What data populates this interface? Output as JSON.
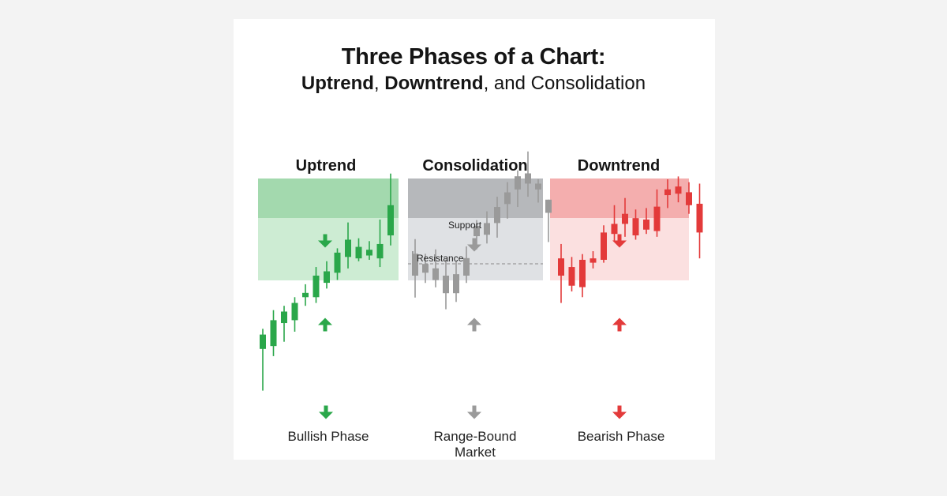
{
  "title": "Three Phases of a Chart:",
  "subtitle": {
    "part1": "Uptrend",
    "sep1": ", ",
    "part2": "Downtrend",
    "rest": ", and Consolidation"
  },
  "colors": {
    "up": "#2aa74a",
    "up_zone": "#cdecd3",
    "up_band": "#a3d9ae",
    "flat": "#9a9a9a",
    "flat_zone": "#dfe1e4",
    "flat_band": "#b6b8bb",
    "down": "#e33a3a",
    "down_zone": "#fbe0e0",
    "down_band": "#f4aeae"
  },
  "icons": {
    "zone_arrow_top": "arrow-down-icon",
    "zone_arrow_bottom": "arrow-up-icon",
    "caption_arrow": "arrow-down-icon"
  },
  "chart_data": [
    {
      "type": "candlestick",
      "title": "Uptrend",
      "caption": "Bullish Phase",
      "color_key": "up",
      "annotations": [],
      "candles": [
        {
          "o": 10,
          "h": 24,
          "l": -19,
          "c": 20
        },
        {
          "o": 12,
          "h": 37,
          "l": 5,
          "c": 30
        },
        {
          "o": 28,
          "h": 40,
          "l": 15,
          "c": 36
        },
        {
          "o": 30,
          "h": 46,
          "l": 22,
          "c": 42
        },
        {
          "o": 46,
          "h": 55,
          "l": 40,
          "c": 49
        },
        {
          "o": 46,
          "h": 67,
          "l": 42,
          "c": 61
        },
        {
          "o": 56,
          "h": 71,
          "l": 52,
          "c": 64
        },
        {
          "o": 63,
          "h": 80,
          "l": 58,
          "c": 77
        },
        {
          "o": 74,
          "h": 98,
          "l": 66,
          "c": 86
        },
        {
          "o": 73,
          "h": 87,
          "l": 71,
          "c": 81
        },
        {
          "o": 75,
          "h": 85,
          "l": 72,
          "c": 79
        },
        {
          "o": 73,
          "h": 100,
          "l": 67,
          "c": 83
        },
        {
          "o": 89,
          "h": 132,
          "l": 82,
          "c": 110
        }
      ]
    },
    {
      "type": "candlestick",
      "title": "Consolidation",
      "caption": "Range-Bound Market",
      "color_key": "flat",
      "annotations": [
        {
          "name": "support",
          "label": "Support"
        },
        {
          "name": "resistance",
          "label": "Resistance"
        }
      ],
      "candles": [
        {
          "o": 60,
          "h": 85,
          "l": 45,
          "c": 75
        },
        {
          "o": 68,
          "h": 75,
          "l": 55,
          "c": 62
        },
        {
          "o": 65,
          "h": 78,
          "l": 52,
          "c": 57
        },
        {
          "o": 60,
          "h": 71,
          "l": 37,
          "c": 48
        },
        {
          "o": 61,
          "h": 70,
          "l": 42,
          "c": 48
        },
        {
          "o": 60,
          "h": 80,
          "l": 55,
          "c": 72
        },
        {
          "o": 87,
          "h": 98,
          "l": 78,
          "c": 94
        },
        {
          "o": 88,
          "h": 104,
          "l": 82,
          "c": 96
        },
        {
          "o": 96,
          "h": 114,
          "l": 86,
          "c": 107
        },
        {
          "o": 109,
          "h": 124,
          "l": 99,
          "c": 117
        },
        {
          "o": 119,
          "h": 132,
          "l": 107,
          "c": 128
        },
        {
          "o": 123,
          "h": 145,
          "l": 114,
          "c": 130
        },
        {
          "o": 119,
          "h": 126,
          "l": 110,
          "c": 123
        },
        {
          "o": 103,
          "h": 112,
          "l": 83,
          "c": 112
        }
      ]
    },
    {
      "type": "candlestick",
      "title": "Downtrend",
      "caption": "Bearish Phase",
      "color_key": "down",
      "annotations": [],
      "candles": [
        {
          "o": 61,
          "h": 83,
          "l": 42,
          "c": 73
        },
        {
          "o": 54,
          "h": 74,
          "l": 50,
          "c": 67
        },
        {
          "o": 53,
          "h": 76,
          "l": 46,
          "c": 72
        },
        {
          "o": 70,
          "h": 78,
          "l": 66,
          "c": 73
        },
        {
          "o": 72,
          "h": 96,
          "l": 70,
          "c": 91
        },
        {
          "o": 90,
          "h": 110,
          "l": 85,
          "c": 97
        },
        {
          "o": 97,
          "h": 115,
          "l": 88,
          "c": 104
        },
        {
          "o": 89,
          "h": 107,
          "l": 86,
          "c": 101
        },
        {
          "o": 93,
          "h": 108,
          "l": 90,
          "c": 100
        },
        {
          "o": 92,
          "h": 121,
          "l": 88,
          "c": 109
        },
        {
          "o": 117,
          "h": 128,
          "l": 108,
          "c": 121
        },
        {
          "o": 118,
          "h": 130,
          "l": 112,
          "c": 123
        },
        {
          "o": 110,
          "h": 126,
          "l": 104,
          "c": 119
        },
        {
          "o": 91,
          "h": 125,
          "l": 73,
          "c": 111
        }
      ]
    }
  ]
}
